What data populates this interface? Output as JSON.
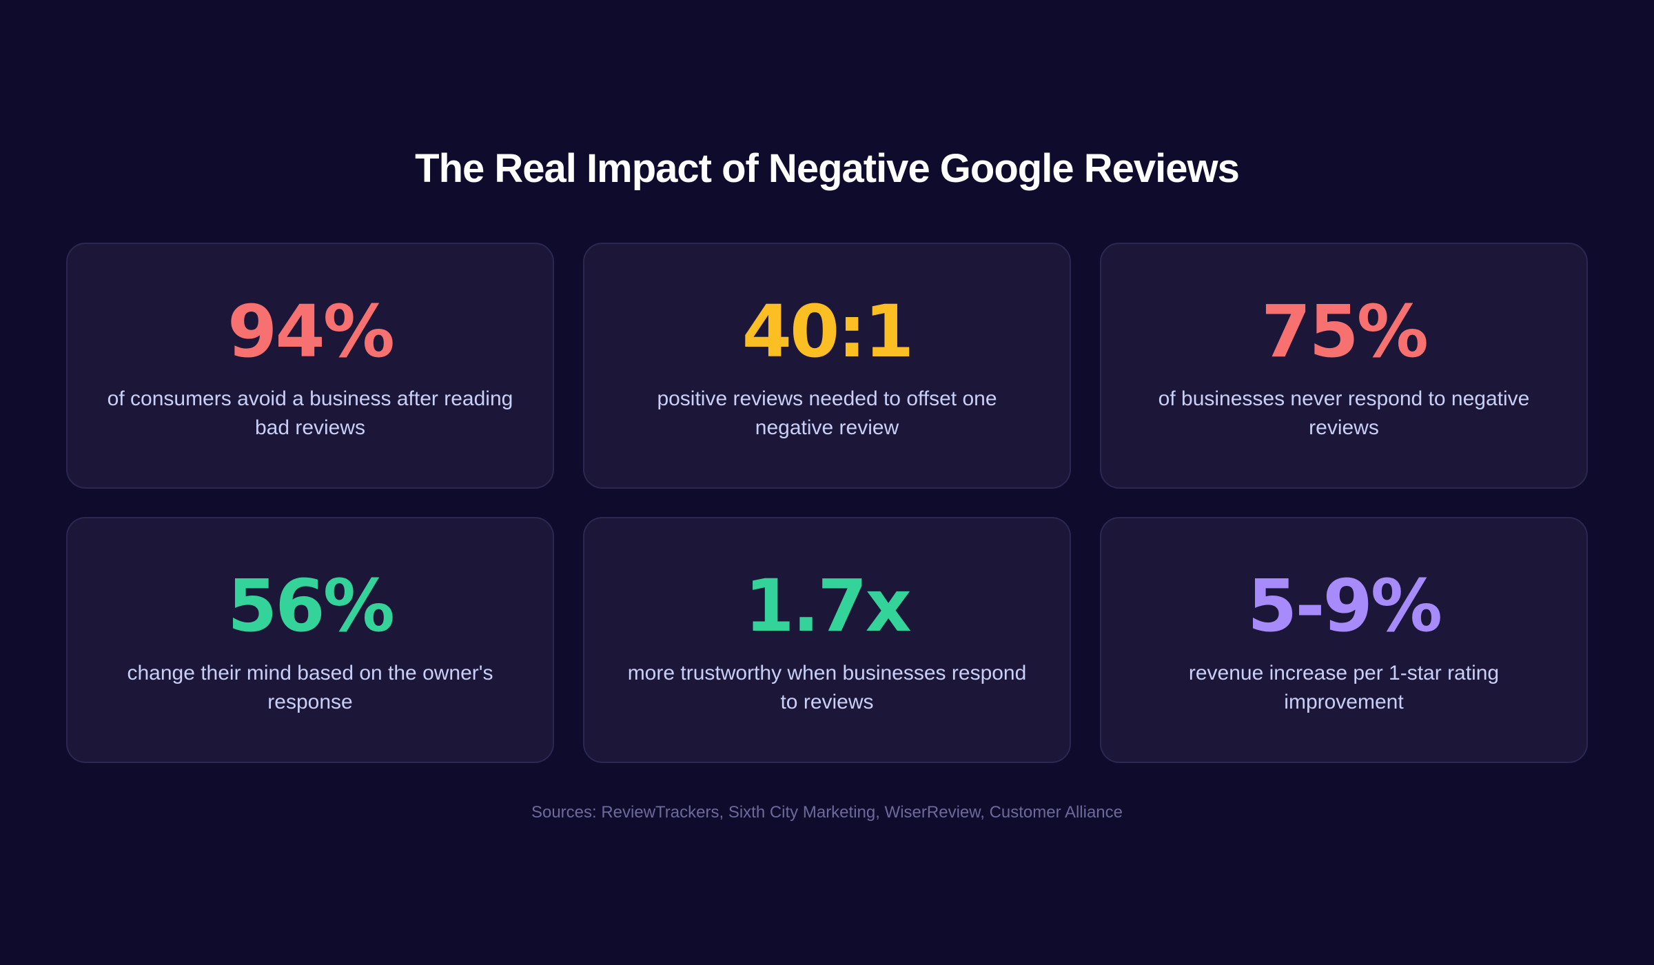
{
  "title": "The Real Impact of Negative Google Reviews",
  "colors": {
    "background": "#0f0b2c",
    "card_background": "#1c1738",
    "card_border": "#2c2750",
    "description": "#c9cff7",
    "sources": "#6c6a9a",
    "coral": "#f87171",
    "amber": "#fbbf24",
    "green": "#34d399",
    "purple": "#a78bfa"
  },
  "stats": [
    {
      "value": "94%",
      "description": "of consumers avoid a business after reading bad reviews",
      "color": "#f87171"
    },
    {
      "value": "40:1",
      "description": "positive reviews needed to offset one negative review",
      "color": "#fbbf24"
    },
    {
      "value": "75%",
      "description": "of businesses never respond to negative reviews",
      "color": "#f87171"
    },
    {
      "value": "56%",
      "description": "change their mind based on the owner's response",
      "color": "#34d399"
    },
    {
      "value": "1.7x",
      "description": "more trustworthy when businesses respond to reviews",
      "color": "#34d399"
    },
    {
      "value": "5-9%",
      "description": "revenue increase per 1-star rating improvement",
      "color": "#a78bfa"
    }
  ],
  "sources": "Sources: ReviewTrackers, Sixth City Marketing, WiserReview, Customer Alliance"
}
